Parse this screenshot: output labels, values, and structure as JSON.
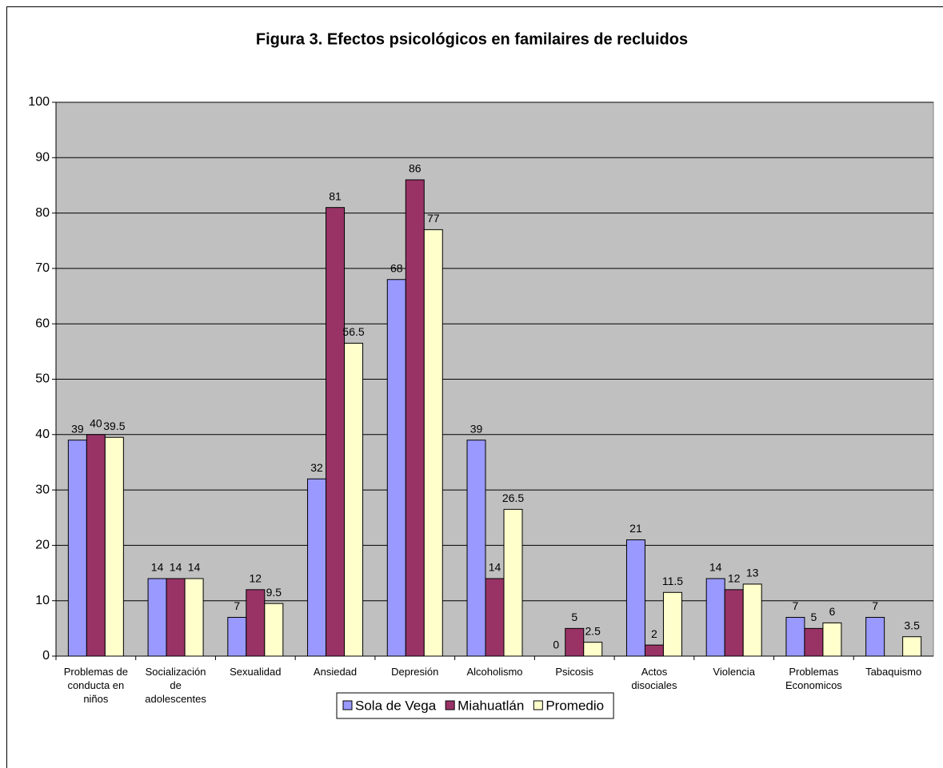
{
  "chart_data": {
    "type": "bar",
    "title": "Figura 3. Efectos psicológicos en familaires de recluidos",
    "categories": [
      "Problemas de conducta en niños",
      "Socialización de adolescentes",
      "Sexualidad",
      "Ansiedad",
      "Depresión",
      "Alcoholismo",
      "Psicosis",
      "Actos disociales",
      "Violencia",
      "Problemas Economicos",
      "Tabaquismo"
    ],
    "series": [
      {
        "name": "Sola de Vega",
        "color": "#9999ff",
        "values": [
          39,
          14,
          7,
          32,
          68,
          39,
          0,
          21,
          14,
          7,
          7
        ]
      },
      {
        "name": "Miahuatlán",
        "color": "#993366",
        "values": [
          40,
          14,
          12,
          81,
          86,
          14,
          5,
          2,
          12,
          5,
          null
        ]
      },
      {
        "name": "Promedio",
        "color": "#ffffcc",
        "values": [
          39.5,
          14,
          9.5,
          56.5,
          77,
          26.5,
          2.5,
          11.5,
          13,
          6,
          3.5
        ]
      }
    ],
    "ylim": [
      0,
      100
    ],
    "yticks": [
      0,
      10,
      20,
      30,
      40,
      50,
      60,
      70,
      80,
      90,
      100
    ],
    "grid": true,
    "legend": "bottom",
    "plot_background": "#c0c0c0"
  }
}
